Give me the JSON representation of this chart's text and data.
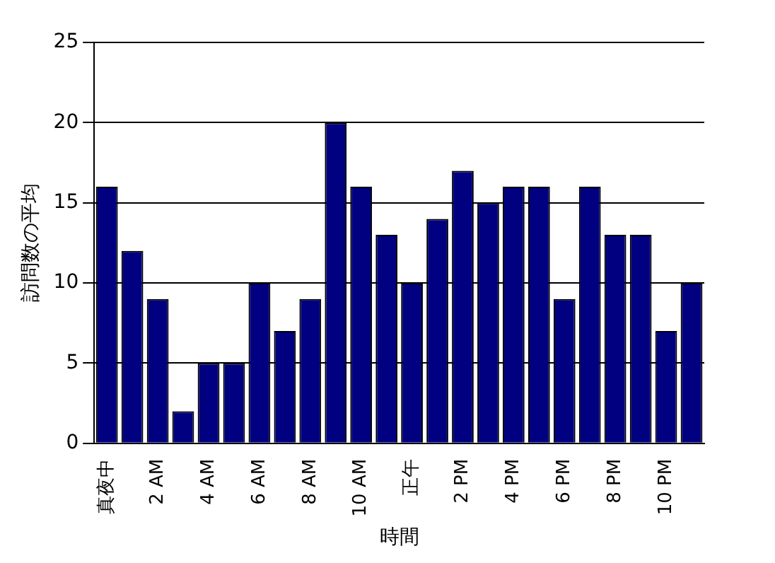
{
  "chart_data": {
    "type": "bar",
    "xlabel": "時間",
    "ylabel": "訪問数の平均",
    "categories": [
      "真夜中",
      null,
      "2 AM",
      null,
      "4 AM",
      null,
      "6 AM",
      null,
      "8 AM",
      null,
      "10 AM",
      null,
      "正午",
      null,
      "2 PM",
      null,
      "4 PM",
      null,
      "6 PM",
      null,
      "8 PM",
      null,
      "10 PM",
      null
    ],
    "values": [
      16,
      12,
      9,
      2,
      5,
      5,
      10,
      7,
      9,
      20,
      16,
      13,
      10,
      14,
      17,
      15,
      16,
      16,
      9,
      16,
      13,
      13,
      7,
      10
    ],
    "color": "#000080",
    "ylim": [
      0,
      25
    ],
    "yticks": [
      0,
      5,
      10,
      15,
      20,
      25
    ],
    "grid": "y",
    "legend": false
  }
}
